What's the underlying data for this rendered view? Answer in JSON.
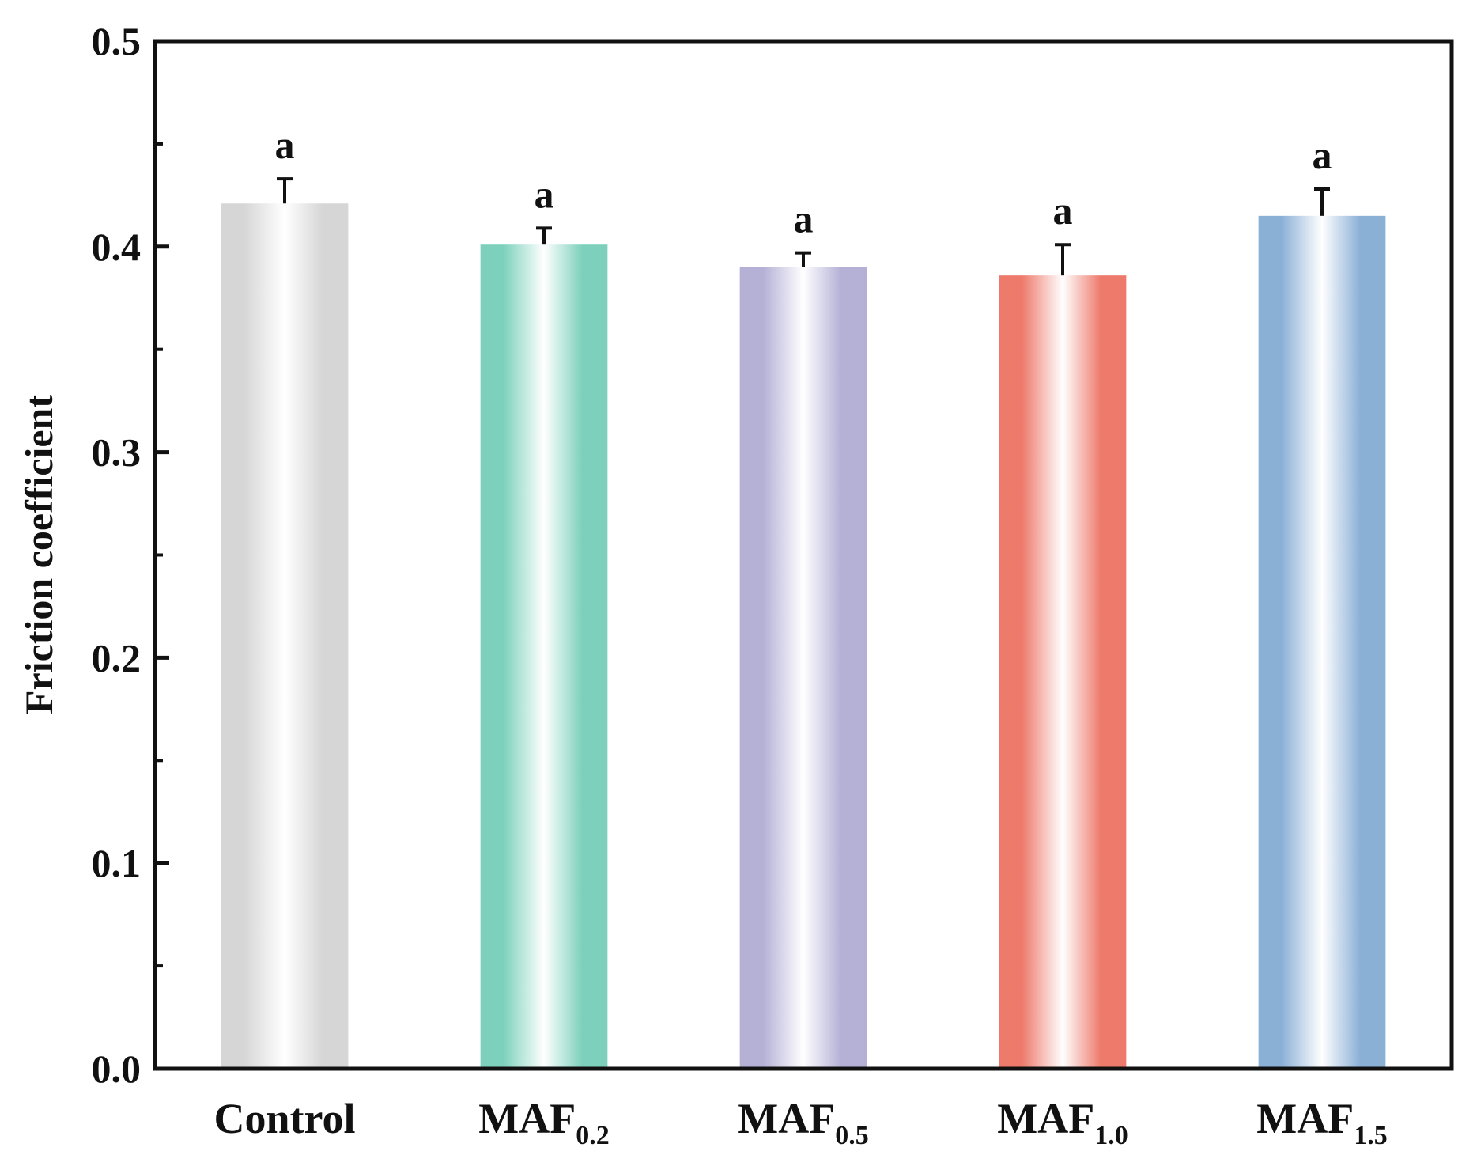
{
  "chart_data": {
    "type": "bar",
    "title": "",
    "xlabel": "",
    "ylabel": "Friction coefficient",
    "ylim": [
      0,
      0.5
    ],
    "yticks": [
      "0.0",
      "0.1",
      "0.2",
      "0.3",
      "0.4",
      "0.5"
    ],
    "grid": false,
    "categories": [
      {
        "main": "Control",
        "sub": ""
      },
      {
        "main": "MAF",
        "sub": "0.2"
      },
      {
        "main": "MAF",
        "sub": "0.5"
      },
      {
        "main": "MAF",
        "sub": "1.0"
      },
      {
        "main": "MAF",
        "sub": "1.5"
      }
    ],
    "values": [
      0.421,
      0.401,
      0.39,
      0.386,
      0.415
    ],
    "errors": [
      0.012,
      0.008,
      0.007,
      0.015,
      0.013
    ],
    "significance": [
      "a",
      "a",
      "a",
      "a",
      "a"
    ],
    "colors": [
      "#d6d6d6",
      "#7dd1bc",
      "#b4b0d6",
      "#ee7a6c",
      "#8bb0d6"
    ]
  }
}
